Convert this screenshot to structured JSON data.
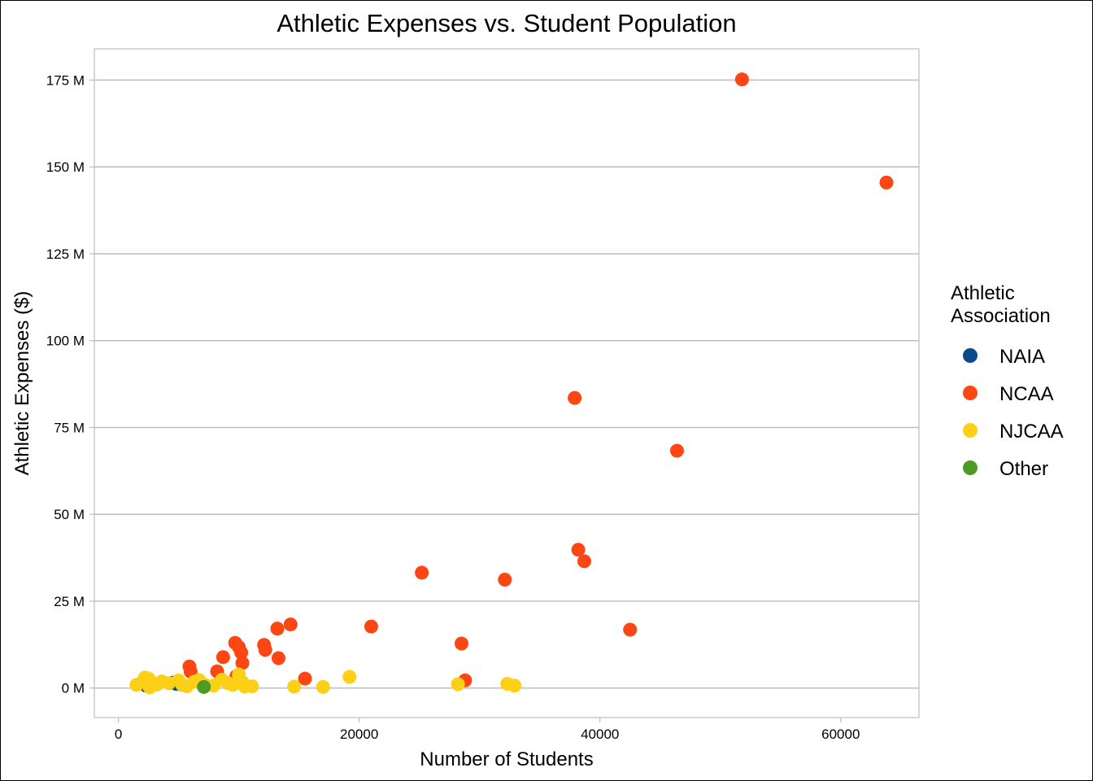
{
  "chart_data": {
    "type": "scatter",
    "title": "Athletic Expenses vs. Student Population",
    "xlabel": "Number of Students",
    "ylabel": "Athletic Expenses ($)",
    "xlim": [
      -2000,
      66500
    ],
    "ylim": [
      -8500000,
      184000000
    ],
    "x_ticks": [
      0,
      20000,
      40000,
      60000
    ],
    "x_tick_labels": [
      "0",
      "20000",
      "40000",
      "60000"
    ],
    "y_ticks": [
      0,
      25000000,
      50000000,
      75000000,
      100000000,
      125000000,
      150000000,
      175000000
    ],
    "y_tick_labels": [
      "0 M",
      "25 M",
      "50 M",
      "75 M",
      "100 M",
      "125 M",
      "150 M",
      "175 M"
    ],
    "grid": "horizontal",
    "legend": {
      "title_lines": [
        "Athletic",
        "Association"
      ],
      "placement": "right"
    },
    "series": [
      {
        "name": "NAIA",
        "color": "#0C4A8A",
        "points": [
          [
            2300,
            700000
          ],
          [
            4500,
            1500000
          ],
          [
            4800,
            1200000
          ],
          [
            5200,
            1000000
          ]
        ]
      },
      {
        "name": "NCAA",
        "color": "#FC4614",
        "points": [
          [
            51800,
            175200000
          ],
          [
            63800,
            145500000
          ],
          [
            37900,
            83500000
          ],
          [
            46400,
            68300000
          ],
          [
            38200,
            39800000
          ],
          [
            38700,
            36500000
          ],
          [
            25200,
            33200000
          ],
          [
            32100,
            31200000
          ],
          [
            42500,
            16800000
          ],
          [
            21000,
            17700000
          ],
          [
            14300,
            18300000
          ],
          [
            13200,
            17100000
          ],
          [
            28500,
            12800000
          ],
          [
            12100,
            12400000
          ],
          [
            12200,
            11000000
          ],
          [
            9700,
            13000000
          ],
          [
            10000,
            11800000
          ],
          [
            10200,
            10200000
          ],
          [
            10300,
            7200000
          ],
          [
            8700,
            8900000
          ],
          [
            13300,
            8600000
          ],
          [
            5900,
            6200000
          ],
          [
            6000,
            4700000
          ],
          [
            8200,
            4800000
          ],
          [
            9800,
            3400000
          ],
          [
            15500,
            2700000
          ],
          [
            28800,
            2200000
          ],
          [
            1900,
            1300000
          ]
        ]
      },
      {
        "name": "NJCAA",
        "color": "#FDD018",
        "points": [
          [
            1500,
            900000
          ],
          [
            2200,
            3000000
          ],
          [
            2500,
            2700000
          ],
          [
            2800,
            1500000
          ],
          [
            3200,
            1000000
          ],
          [
            3600,
            1900000
          ],
          [
            4200,
            1400000
          ],
          [
            5000,
            2200000
          ],
          [
            5300,
            900000
          ],
          [
            5700,
            500000
          ],
          [
            6300,
            1800000
          ],
          [
            6700,
            2300000
          ],
          [
            7200,
            900000
          ],
          [
            7900,
            700000
          ],
          [
            8600,
            2400000
          ],
          [
            9100,
            1400000
          ],
          [
            9500,
            900000
          ],
          [
            10000,
            3900000
          ],
          [
            10300,
            1700000
          ],
          [
            10500,
            400000
          ],
          [
            11100,
            500000
          ],
          [
            14600,
            400000
          ],
          [
            17000,
            300000
          ],
          [
            19200,
            3200000
          ],
          [
            28200,
            1100000
          ],
          [
            32300,
            1200000
          ],
          [
            32900,
            700000
          ],
          [
            2600,
            200000
          ]
        ]
      },
      {
        "name": "Other",
        "color": "#4F9A22",
        "points": [
          [
            7100,
            300000
          ]
        ]
      }
    ]
  }
}
